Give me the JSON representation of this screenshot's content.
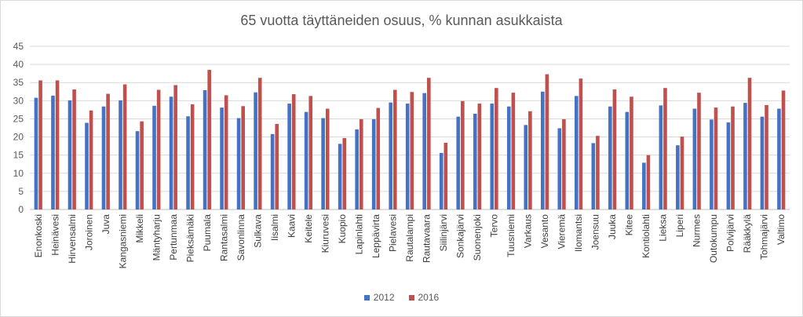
{
  "chart_data": {
    "type": "bar",
    "title": "65 vuotta täyttäneiden osuus, % kunnan asukkaista",
    "xlabel": "",
    "ylabel": "",
    "ylim": [
      0,
      45
    ],
    "yticks": [
      0,
      5,
      10,
      15,
      20,
      25,
      30,
      35,
      40,
      45
    ],
    "grid": true,
    "legend_position": "bottom",
    "categories": [
      "Enonkoski",
      "Heinävesi",
      "Hirvensalmi",
      "Joroinen",
      "Juva",
      "Kangasniemi",
      "Mikkeli",
      "Mäntyharju",
      "Pertunmaa",
      "Pieksämäki",
      "Puumala",
      "Rantasalmi",
      "Savonlinna",
      "Sulkava",
      "Iisalmi",
      "Kaavi",
      "Keitele",
      "Kiuruvesi",
      "Kuopio",
      "Lapinlahti",
      "Leppävirta",
      "Pielavesi",
      "Rautalampi",
      "Rautavaara",
      "Siilinjärvi",
      "Sonkajärvi",
      "Suonenjoki",
      "Tervo",
      "Tuusniemi",
      "Varkaus",
      "Vesanto",
      "Vieremä",
      "Ilomantsi",
      "Joensuu",
      "Juuka",
      "Kitee",
      "Kontiolahti",
      "Lieksa",
      "Liperi",
      "Nurmes",
      "Outokumpu",
      "Polvijärvi",
      "Rääkkylä",
      "Tohmajärvi",
      "Valtimo"
    ],
    "series": [
      {
        "name": "2012",
        "color": "#4472c4",
        "values": [
          30.8,
          31.4,
          30.1,
          23.9,
          28.4,
          30.1,
          21.6,
          28.6,
          31.1,
          25.7,
          32.9,
          28.1,
          25.2,
          32.3,
          20.8,
          29.2,
          26.9,
          25.2,
          18.1,
          22.1,
          24.9,
          29.5,
          29.2,
          32.1,
          15.6,
          25.6,
          26.4,
          29.2,
          28.4,
          23.3,
          32.5,
          22.4,
          31.3,
          18.3,
          28.4,
          26.9,
          12.9,
          28.7,
          17.7,
          27.8,
          24.8,
          24.0,
          29.4,
          25.6,
          27.8
        ]
      },
      {
        "name": "2016",
        "color": "#c0504d",
        "values": [
          35.6,
          35.6,
          33.1,
          27.3,
          31.9,
          34.5,
          24.3,
          33.0,
          34.3,
          29.0,
          38.5,
          31.5,
          28.5,
          36.3,
          23.6,
          31.8,
          31.3,
          27.8,
          19.7,
          24.9,
          28.0,
          33.0,
          32.4,
          36.3,
          18.4,
          29.9,
          29.2,
          33.5,
          32.2,
          27.1,
          37.3,
          24.9,
          36.1,
          20.3,
          33.1,
          31.1,
          15.0,
          33.5,
          20.1,
          32.2,
          28.1,
          28.4,
          36.3,
          28.8,
          32.8
        ]
      }
    ]
  }
}
